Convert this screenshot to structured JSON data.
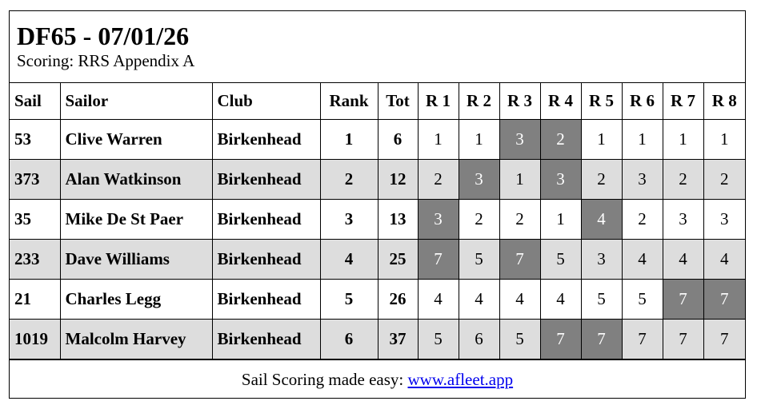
{
  "header": {
    "title": "DF65 - 07/01/26",
    "subtitle": "Scoring: RRS Appendix A"
  },
  "columns": [
    "Sail",
    "Sailor",
    "Club",
    "Rank",
    "Tot",
    "R 1",
    "R 2",
    "R 3",
    "R 4",
    "R 5",
    "R 6",
    "R 7",
    "R 8"
  ],
  "colors": {
    "discard": "#808080",
    "alt_row": "#dddddd"
  },
  "rows": [
    {
      "sail": "53",
      "sailor": "Clive Warren",
      "club": "Birkenhead",
      "rank": "1",
      "tot": "6",
      "races": [
        "1",
        "1",
        "3",
        "2",
        "1",
        "1",
        "1",
        "1"
      ],
      "discards": [
        2,
        3
      ]
    },
    {
      "sail": "373",
      "sailor": "Alan Watkinson",
      "club": "Birkenhead",
      "rank": "2",
      "tot": "12",
      "races": [
        "2",
        "3",
        "1",
        "3",
        "2",
        "3",
        "2",
        "2"
      ],
      "discards": [
        1,
        3
      ]
    },
    {
      "sail": "35",
      "sailor": "Mike De St Paer",
      "club": "Birkenhead",
      "rank": "3",
      "tot": "13",
      "races": [
        "3",
        "2",
        "2",
        "1",
        "4",
        "2",
        "3",
        "3"
      ],
      "discards": [
        0,
        4
      ]
    },
    {
      "sail": "233",
      "sailor": "Dave Williams",
      "club": "Birkenhead",
      "rank": "4",
      "tot": "25",
      "races": [
        "7",
        "5",
        "7",
        "5",
        "3",
        "4",
        "4",
        "4"
      ],
      "discards": [
        0,
        2
      ]
    },
    {
      "sail": "21",
      "sailor": "Charles Legg",
      "club": "Birkenhead",
      "rank": "5",
      "tot": "26",
      "races": [
        "4",
        "4",
        "4",
        "4",
        "5",
        "5",
        "7",
        "7"
      ],
      "discards": [
        6,
        7
      ]
    },
    {
      "sail": "1019",
      "sailor": "Malcolm Harvey",
      "club": "Birkenhead",
      "rank": "6",
      "tot": "37",
      "races": [
        "5",
        "6",
        "5",
        "7",
        "7",
        "7",
        "7",
        "7"
      ],
      "discards": [
        3,
        4
      ]
    }
  ],
  "footer": {
    "text": "Sail Scoring made easy: ",
    "link": "www.afleet.app"
  }
}
